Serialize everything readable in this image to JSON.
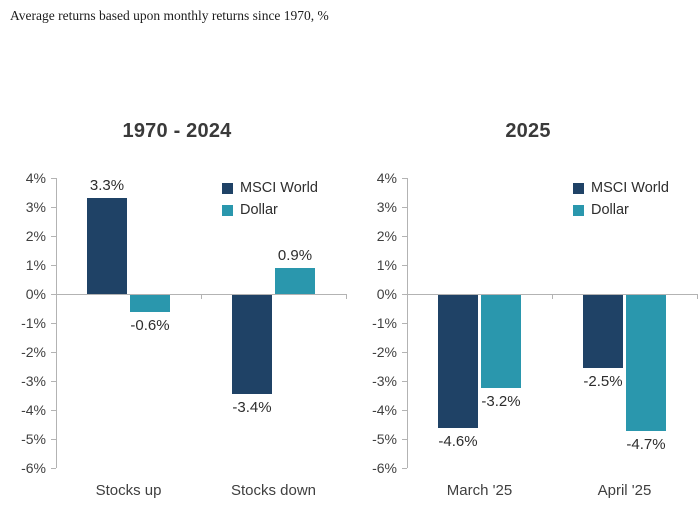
{
  "note": "Average returns based upon monthly returns since 1970, %",
  "colors": {
    "msci_world": "#1f4266",
    "dollar": "#2a97ad",
    "axis": "#b3b3b3",
    "label_text": "#3f3f3f",
    "value_text": "#2d2d2d",
    "title_text": "#3a3a3a"
  },
  "chart_data": [
    {
      "type": "bar",
      "title": "1970 - 2024",
      "categories": [
        "Stocks up",
        "Stocks down"
      ],
      "series": [
        {
          "name": "MSCI World",
          "color": "#1f4266",
          "values": [
            3.3,
            -3.4
          ]
        },
        {
          "name": "Dollar",
          "color": "#2a97ad",
          "values": [
            -0.6,
            0.9
          ]
        }
      ],
      "value_labels": [
        [
          "3.3%",
          "-3.4%"
        ],
        [
          "-0.6%",
          "0.9%"
        ]
      ],
      "ylim": [
        -6,
        4
      ],
      "ytick_step": 1,
      "ytick_suffix": "%",
      "grid": false,
      "legend_position": "top-right",
      "legend": [
        "MSCI World",
        "Dollar"
      ]
    },
    {
      "type": "bar",
      "title": "2025",
      "categories": [
        "March '25",
        "April '25"
      ],
      "series": [
        {
          "name": "MSCI World",
          "color": "#1f4266",
          "values": [
            -4.6,
            -2.5
          ]
        },
        {
          "name": "Dollar",
          "color": "#2a97ad",
          "values": [
            -3.2,
            -4.7
          ]
        }
      ],
      "value_labels": [
        [
          "-4.6%",
          "-2.5%"
        ],
        [
          "-3.2%",
          "-4.7%"
        ]
      ],
      "ylim": [
        -6,
        4
      ],
      "ytick_step": 1,
      "ytick_suffix": "%",
      "grid": false,
      "legend_position": "top-right",
      "legend": [
        "MSCI World",
        "Dollar"
      ]
    }
  ]
}
